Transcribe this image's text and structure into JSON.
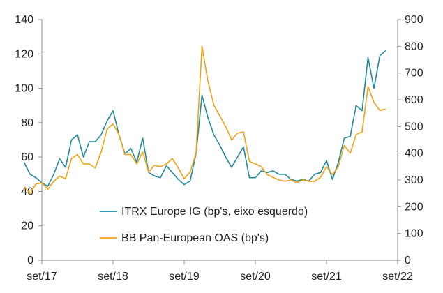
{
  "chart_data": {
    "type": "line",
    "x_ticks": [
      "set/17",
      "set/18",
      "set/19",
      "set/20",
      "set/21",
      "set/22"
    ],
    "left_axis": {
      "ylim": [
        0,
        140
      ],
      "ticks": [
        "0",
        "20",
        "40",
        "60",
        "80",
        "100",
        "120",
        "140"
      ]
    },
    "right_axis": {
      "ylim": [
        0,
        900
      ],
      "ticks": [
        "0",
        "100",
        "200",
        "300",
        "400",
        "500",
        "600",
        "700",
        "800",
        "900"
      ]
    },
    "legend_position": "bottom-left",
    "grid": false,
    "series": [
      {
        "name": "ITRX Europe IG (bp's, eixo esquerdo)",
        "axis": "left",
        "color": "#1f8a9e",
        "x": [
          "2017-06",
          "2017-07",
          "2017-08",
          "2017-09",
          "2017-10",
          "2017-11",
          "2017-12",
          "2018-01",
          "2018-02",
          "2018-03",
          "2018-04",
          "2018-05",
          "2018-06",
          "2018-07",
          "2018-08",
          "2018-09",
          "2018-10",
          "2018-11",
          "2018-12",
          "2019-01",
          "2019-02",
          "2019-03",
          "2019-04",
          "2019-05",
          "2019-06",
          "2019-07",
          "2019-08",
          "2019-09",
          "2019-10",
          "2019-11",
          "2019-12",
          "2020-01",
          "2020-02",
          "2020-03",
          "2020-04",
          "2020-05",
          "2020-06",
          "2020-07",
          "2020-08",
          "2020-09",
          "2020-10",
          "2020-11",
          "2020-12",
          "2021-01",
          "2021-02",
          "2021-03",
          "2021-04",
          "2021-05",
          "2021-06",
          "2021-07",
          "2021-08",
          "2021-09",
          "2021-10",
          "2021-11",
          "2021-12",
          "2022-01",
          "2022-02",
          "2022-03",
          "2022-04",
          "2022-05",
          "2022-06",
          "2022-07",
          "2022-08",
          "2022-09",
          "2022-10"
        ],
        "values": [
          57,
          50,
          48,
          45,
          43,
          50,
          59,
          54,
          70,
          73,
          60,
          69,
          69,
          73,
          81,
          87,
          73,
          62,
          65,
          57,
          71,
          51,
          49,
          48,
          55,
          51,
          47,
          44,
          46,
          62,
          96,
          83,
          73,
          67,
          60,
          54,
          60,
          66,
          48,
          48,
          52,
          51,
          52,
          50,
          50,
          47,
          46,
          47,
          46,
          50,
          51,
          58,
          47,
          57,
          71,
          72,
          90,
          87,
          118,
          100,
          119,
          122,
          null,
          null,
          null
        ]
      },
      {
        "name": "BB Pan-European OAS (bp's)",
        "axis": "right",
        "color": "#f2a114",
        "x": [
          "2017-06",
          "2017-07",
          "2017-08",
          "2017-09",
          "2017-10",
          "2017-11",
          "2017-12",
          "2018-01",
          "2018-02",
          "2018-03",
          "2018-04",
          "2018-05",
          "2018-06",
          "2018-07",
          "2018-08",
          "2018-09",
          "2018-10",
          "2018-11",
          "2018-12",
          "2019-01",
          "2019-02",
          "2019-03",
          "2019-04",
          "2019-05",
          "2019-06",
          "2019-07",
          "2019-08",
          "2019-09",
          "2019-10",
          "2019-11",
          "2019-12",
          "2020-01",
          "2020-02",
          "2020-03",
          "2020-04",
          "2020-05",
          "2020-06",
          "2020-07",
          "2020-08",
          "2020-09",
          "2020-10",
          "2020-11",
          "2020-12",
          "2021-01",
          "2021-02",
          "2021-03",
          "2021-04",
          "2021-05",
          "2021-06",
          "2021-07",
          "2021-08",
          "2021-09",
          "2021-10",
          "2021-11",
          "2021-12",
          "2022-01",
          "2022-02",
          "2022-03",
          "2022-04",
          "2022-05",
          "2022-06",
          "2022-07",
          "2022-08",
          "2022-09",
          "2022-10"
        ],
        "values": [
          275,
          250,
          285,
          290,
          265,
          295,
          315,
          305,
          380,
          395,
          360,
          360,
          345,
          405,
          490,
          510,
          470,
          395,
          395,
          360,
          405,
          330,
          355,
          350,
          360,
          380,
          345,
          305,
          330,
          400,
          800,
          670,
          580,
          540,
          500,
          450,
          475,
          480,
          370,
          360,
          350,
          320,
          310,
          300,
          295,
          300,
          290,
          300,
          295,
          295,
          310,
          350,
          320,
          350,
          430,
          400,
          470,
          480,
          650,
          590,
          560,
          565,
          null,
          null,
          null
        ]
      }
    ]
  }
}
